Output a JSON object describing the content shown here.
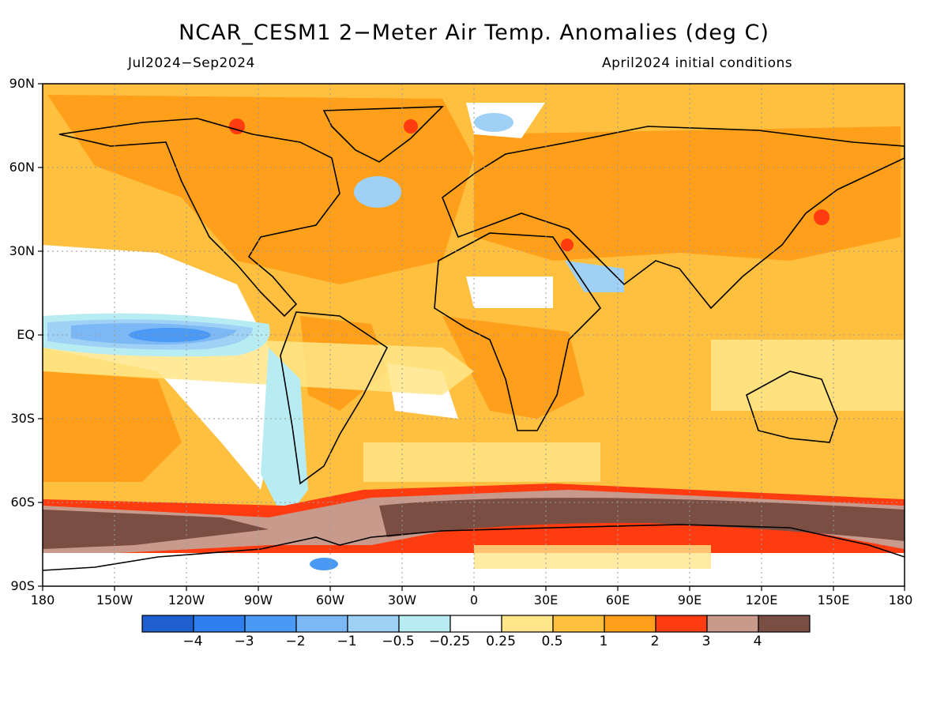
{
  "header": {
    "title": "NCAR_CESM1 2−Meter Air Temp. Anomalies (deg C)",
    "period": "Jul2024−Sep2024",
    "init": "April2024 initial conditions"
  },
  "axes": {
    "lat_ticks": [
      "90N",
      "60N",
      "30N",
      "EQ",
      "30S",
      "60S",
      "90S"
    ],
    "lon_ticks": [
      "180",
      "150W",
      "120W",
      "90W",
      "60W",
      "30W",
      "0",
      "30E",
      "60E",
      "90E",
      "120E",
      "150E",
      "180"
    ]
  },
  "colorbar": {
    "colors": [
      "#1f5fd0",
      "#2e7ef0",
      "#4a9af5",
      "#7cb8f5",
      "#9fd0f5",
      "#b8ecf3",
      "#ffffff",
      "#ffe68a",
      "#ffc040",
      "#ff9f1a",
      "#ff3b10",
      "#c89a8c",
      "#7a4e42"
    ],
    "labels": [
      "−4",
      "−3",
      "−2",
      "−1",
      "−0.5",
      "−0.25",
      "0.25",
      "0.5",
      "1",
      "2",
      "3",
      "4"
    ]
  },
  "map": {
    "background_anomaly_color": "#ffc040"
  }
}
